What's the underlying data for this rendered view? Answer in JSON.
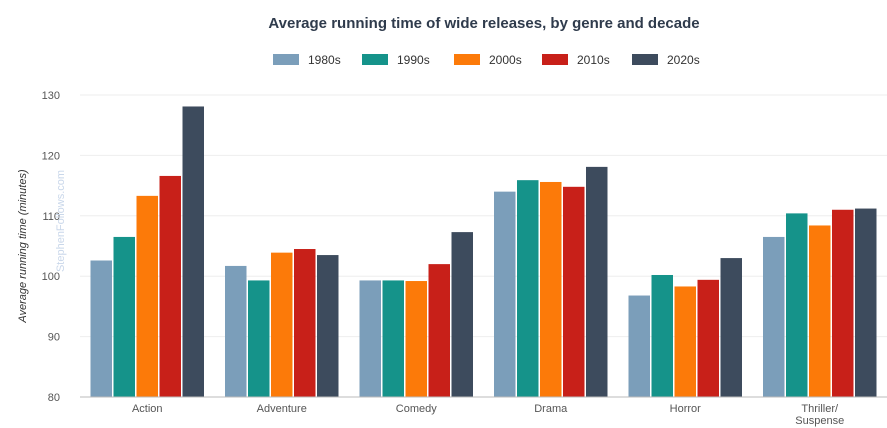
{
  "chart_data": {
    "type": "bar",
    "title": "Average running time of wide releases, by genre and decade",
    "xlabel": "",
    "ylabel": "Average running time (minutes)",
    "watermark": "StephenFollows.com",
    "categories": [
      "Action",
      "Adventure",
      "Comedy",
      "Drama",
      "Horror",
      "Thriller/\nSuspense"
    ],
    "ylim": [
      80,
      130
    ],
    "yticks": [
      80,
      90,
      100,
      110,
      120,
      130
    ],
    "grid": true,
    "legend_position": "top-center",
    "series": [
      {
        "name": "1980s",
        "color": "#7b9eba",
        "values": [
          102.6,
          101.7,
          99.3,
          114.0,
          96.8,
          106.5
        ]
      },
      {
        "name": "1990s",
        "color": "#15938a",
        "values": [
          106.5,
          99.3,
          99.3,
          115.9,
          100.2,
          110.4
        ]
      },
      {
        "name": "2000s",
        "color": "#fc7a09",
        "values": [
          113.3,
          103.9,
          99.2,
          115.6,
          98.3,
          108.4
        ]
      },
      {
        "name": "2010s",
        "color": "#c82019",
        "values": [
          116.6,
          104.5,
          102.0,
          114.8,
          99.4,
          111.0
        ]
      },
      {
        "name": "2020s",
        "color": "#3d4b5d",
        "values": [
          128.1,
          103.5,
          107.3,
          118.1,
          103.0,
          111.2
        ]
      }
    ]
  }
}
